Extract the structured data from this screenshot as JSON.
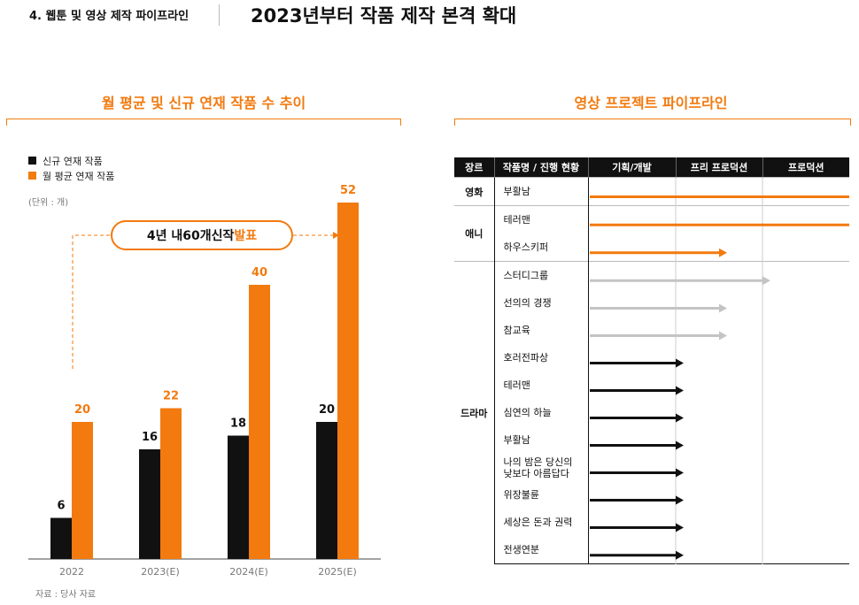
{
  "header": {
    "section": "4. 웹툰 및 영상 제작 파이프라인",
    "title": "2023년부터 작품 제작 본격 확대"
  },
  "colors": {
    "accent": "#f27a0f",
    "black": "#111111",
    "gray": "#c4c4c4"
  },
  "left_panel": {
    "title": "월 평균 및 신규 연재 작품 수 추이",
    "unit": "(단위 : 개)",
    "source": "자료 : 당사 자료",
    "legend": [
      "신규 연재 작품",
      "월 평균 연재 작품"
    ],
    "callout": {
      "pre": "4년 내 ",
      "num": "60개",
      "mid": " 신작 ",
      "hl": "발표"
    }
  },
  "right_panel": {
    "title": "영상 프로젝트 파이프라인",
    "columns": [
      "장르",
      "작품명 / 진행 현황",
      "기획/개발",
      "프리 프로덕션",
      "프로덕션"
    ],
    "rows": [
      {
        "genre": "영화",
        "title": "부활남",
        "stage": 3,
        "color": "orange"
      },
      {
        "genre": "애니",
        "title": "테러맨",
        "stage": 3,
        "color": "orange"
      },
      {
        "genre": "",
        "title": "하우스키퍼",
        "stage": 1.5,
        "color": "orange"
      },
      {
        "genre": "드라마",
        "title": "스터디그룹",
        "stage": 2,
        "color": "gray"
      },
      {
        "genre": "",
        "title": "선의의 경쟁",
        "stage": 1.5,
        "color": "gray"
      },
      {
        "genre": "",
        "title": "참교육",
        "stage": 1.5,
        "color": "gray"
      },
      {
        "genre": "",
        "title": "호러전파상",
        "stage": 1,
        "color": "black"
      },
      {
        "genre": "",
        "title": "테러맨",
        "stage": 1,
        "color": "black"
      },
      {
        "genre": "",
        "title": "심연의 하늘",
        "stage": 1,
        "color": "black"
      },
      {
        "genre": "",
        "title": "부활남",
        "stage": 1,
        "color": "black"
      },
      {
        "genre": "",
        "title": "나의 밤은 당신의\n낮보다 아름답다",
        "stage": 1,
        "color": "black"
      },
      {
        "genre": "",
        "title": "위장불륜",
        "stage": 1,
        "color": "black"
      },
      {
        "genre": "",
        "title": "세상은 돈과 권력",
        "stage": 1,
        "color": "black"
      },
      {
        "genre": "",
        "title": "전생연분",
        "stage": 1,
        "color": "black"
      }
    ]
  },
  "chart_data": {
    "type": "bar",
    "title": "월 평균 및 신규 연재 작품 수 추이",
    "categories": [
      "2022",
      "2023(E)",
      "2024(E)",
      "2025(E)"
    ],
    "series": [
      {
        "name": "신규 연재 작품",
        "values": [
          6,
          16,
          18,
          20
        ],
        "color": "#111111"
      },
      {
        "name": "월 평균 연재 작품",
        "values": [
          20,
          22,
          40,
          52
        ],
        "color": "#f27a0f"
      }
    ],
    "ylim": [
      0,
      60
    ],
    "grid": false,
    "legend": "top-left"
  }
}
